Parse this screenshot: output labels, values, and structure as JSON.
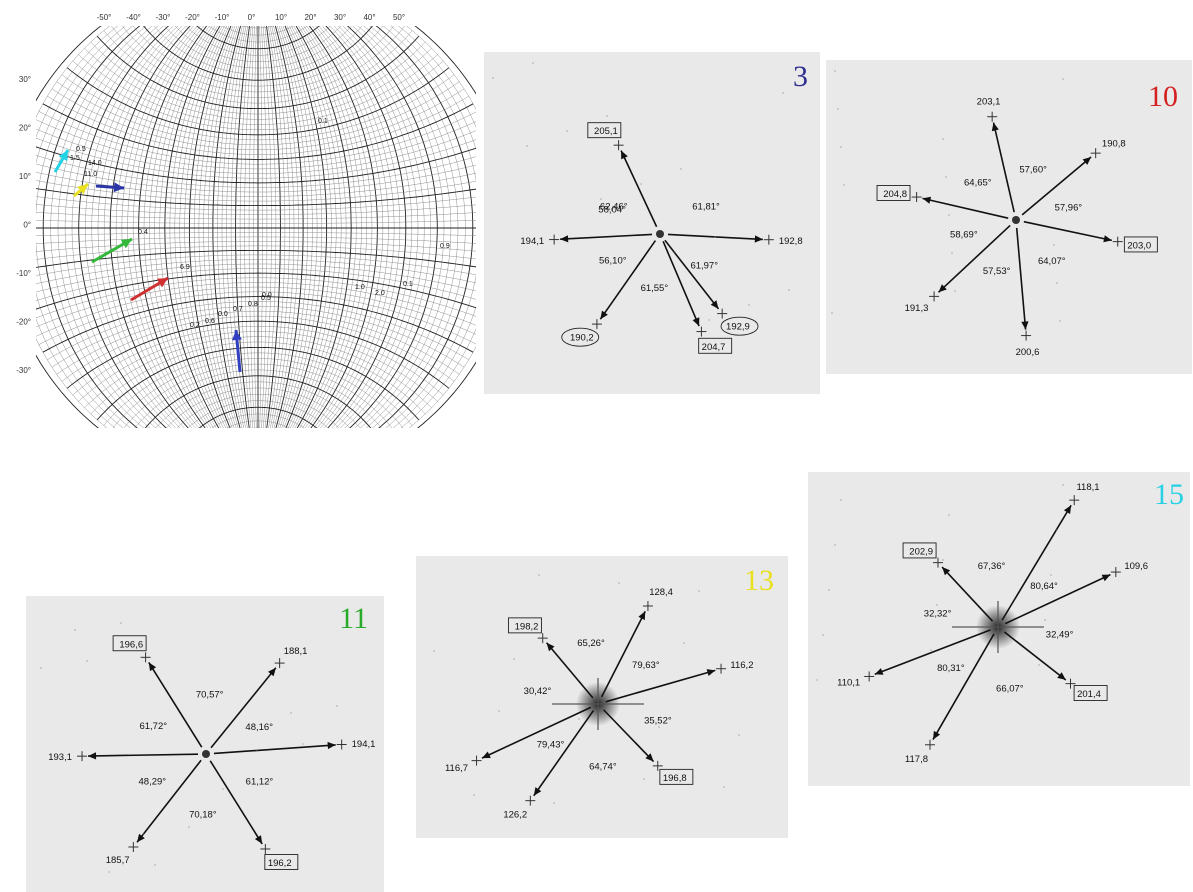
{
  "stereogram": {
    "top_ticks": [
      "-50°",
      "-40°",
      "-30°",
      "-20°",
      "-10°",
      "0°",
      "10°",
      "20°",
      "30°",
      "40°",
      "50°"
    ],
    "left_ticks": [
      "30°",
      "20°",
      "10°",
      "0°",
      "-10°",
      "-20°",
      "-30°"
    ],
    "point_labels": [
      "0.5",
      "1.5",
      "14.0",
      "11.0",
      "0.1",
      "0.4",
      "6.9",
      "0.9",
      "1.0",
      "2.0",
      "0.1",
      "0.2",
      "0.6",
      "0.0",
      "0.7",
      "0.8",
      "0.5",
      "0.0"
    ],
    "arrows": [
      {
        "color": "#22d3e6"
      },
      {
        "color": "#e8e020"
      },
      {
        "color": "#2a35a8"
      },
      {
        "color": "#33b83a"
      },
      {
        "color": "#d03030"
      },
      {
        "color": "#3040c0"
      }
    ]
  },
  "patterns": [
    {
      "number": "3",
      "number_color": "#2e2e8f",
      "rays": [
        {
          "label": "205,1",
          "box": "rect"
        },
        {
          "label": "192,9",
          "box": "ellipse"
        },
        {
          "label": "192,8",
          "box": "none"
        },
        {
          "label": "204,7",
          "box": "rect"
        },
        {
          "label": "190,2",
          "box": "ellipse"
        },
        {
          "label": "194,1",
          "box": "none"
        }
      ],
      "angles": [
        "61,81°",
        "58,04°",
        "61,97°",
        "61,55°",
        "56,10°",
        "62,46°"
      ]
    },
    {
      "number": "10",
      "number_color": "#d42020",
      "rays": [
        {
          "label": "203,1",
          "box": "none"
        },
        {
          "label": "190,8",
          "box": "none"
        },
        {
          "label": "203,0",
          "box": "rect"
        },
        {
          "label": "200,6",
          "box": "none"
        },
        {
          "label": "191,3",
          "box": "none"
        },
        {
          "label": "204,8",
          "box": "rect"
        }
      ],
      "angles": [
        "57,60°",
        "57,96°",
        "64,07°",
        "57,53°",
        "58,69°",
        "64,65°"
      ]
    },
    {
      "number": "11",
      "number_color": "#2aaa2a",
      "rays": [
        {
          "label": "196,6",
          "box": "rect"
        },
        {
          "label": "188,1",
          "box": "none"
        },
        {
          "label": "194,1",
          "box": "none"
        },
        {
          "label": "196,2",
          "box": "rect"
        },
        {
          "label": "185,7",
          "box": "none"
        },
        {
          "label": "193,1",
          "box": "none"
        }
      ],
      "angles": [
        "70,57°",
        "48,16°",
        "61,12°",
        "70,18°",
        "48,29°",
        "61,72°"
      ]
    },
    {
      "number": "13",
      "number_color": "#e8e020",
      "rays": [
        {
          "label": "128,4",
          "box": "none"
        },
        {
          "label": "116,2",
          "box": "none"
        },
        {
          "label": "196,8",
          "box": "rect"
        },
        {
          "label": "126,2",
          "box": "none"
        },
        {
          "label": "116,7",
          "box": "none"
        },
        {
          "label": "198,2",
          "box": "rect"
        }
      ],
      "angles": [
        "79,63°",
        "35,52°",
        "64,74°",
        "79,43°",
        "30,42°",
        "65,26°"
      ]
    },
    {
      "number": "15",
      "number_color": "#28d0e6",
      "rays": [
        {
          "label": "118,1",
          "box": "none"
        },
        {
          "label": "109,6",
          "box": "none"
        },
        {
          "label": "201,4",
          "box": "rect"
        },
        {
          "label": "117,8",
          "box": "none"
        },
        {
          "label": "110,1",
          "box": "none"
        },
        {
          "label": "202,9",
          "box": "rect"
        }
      ],
      "angles": [
        "80,64°",
        "32,49°",
        "66,07°",
        "80,31°",
        "32,32°",
        "67,36°"
      ]
    }
  ]
}
